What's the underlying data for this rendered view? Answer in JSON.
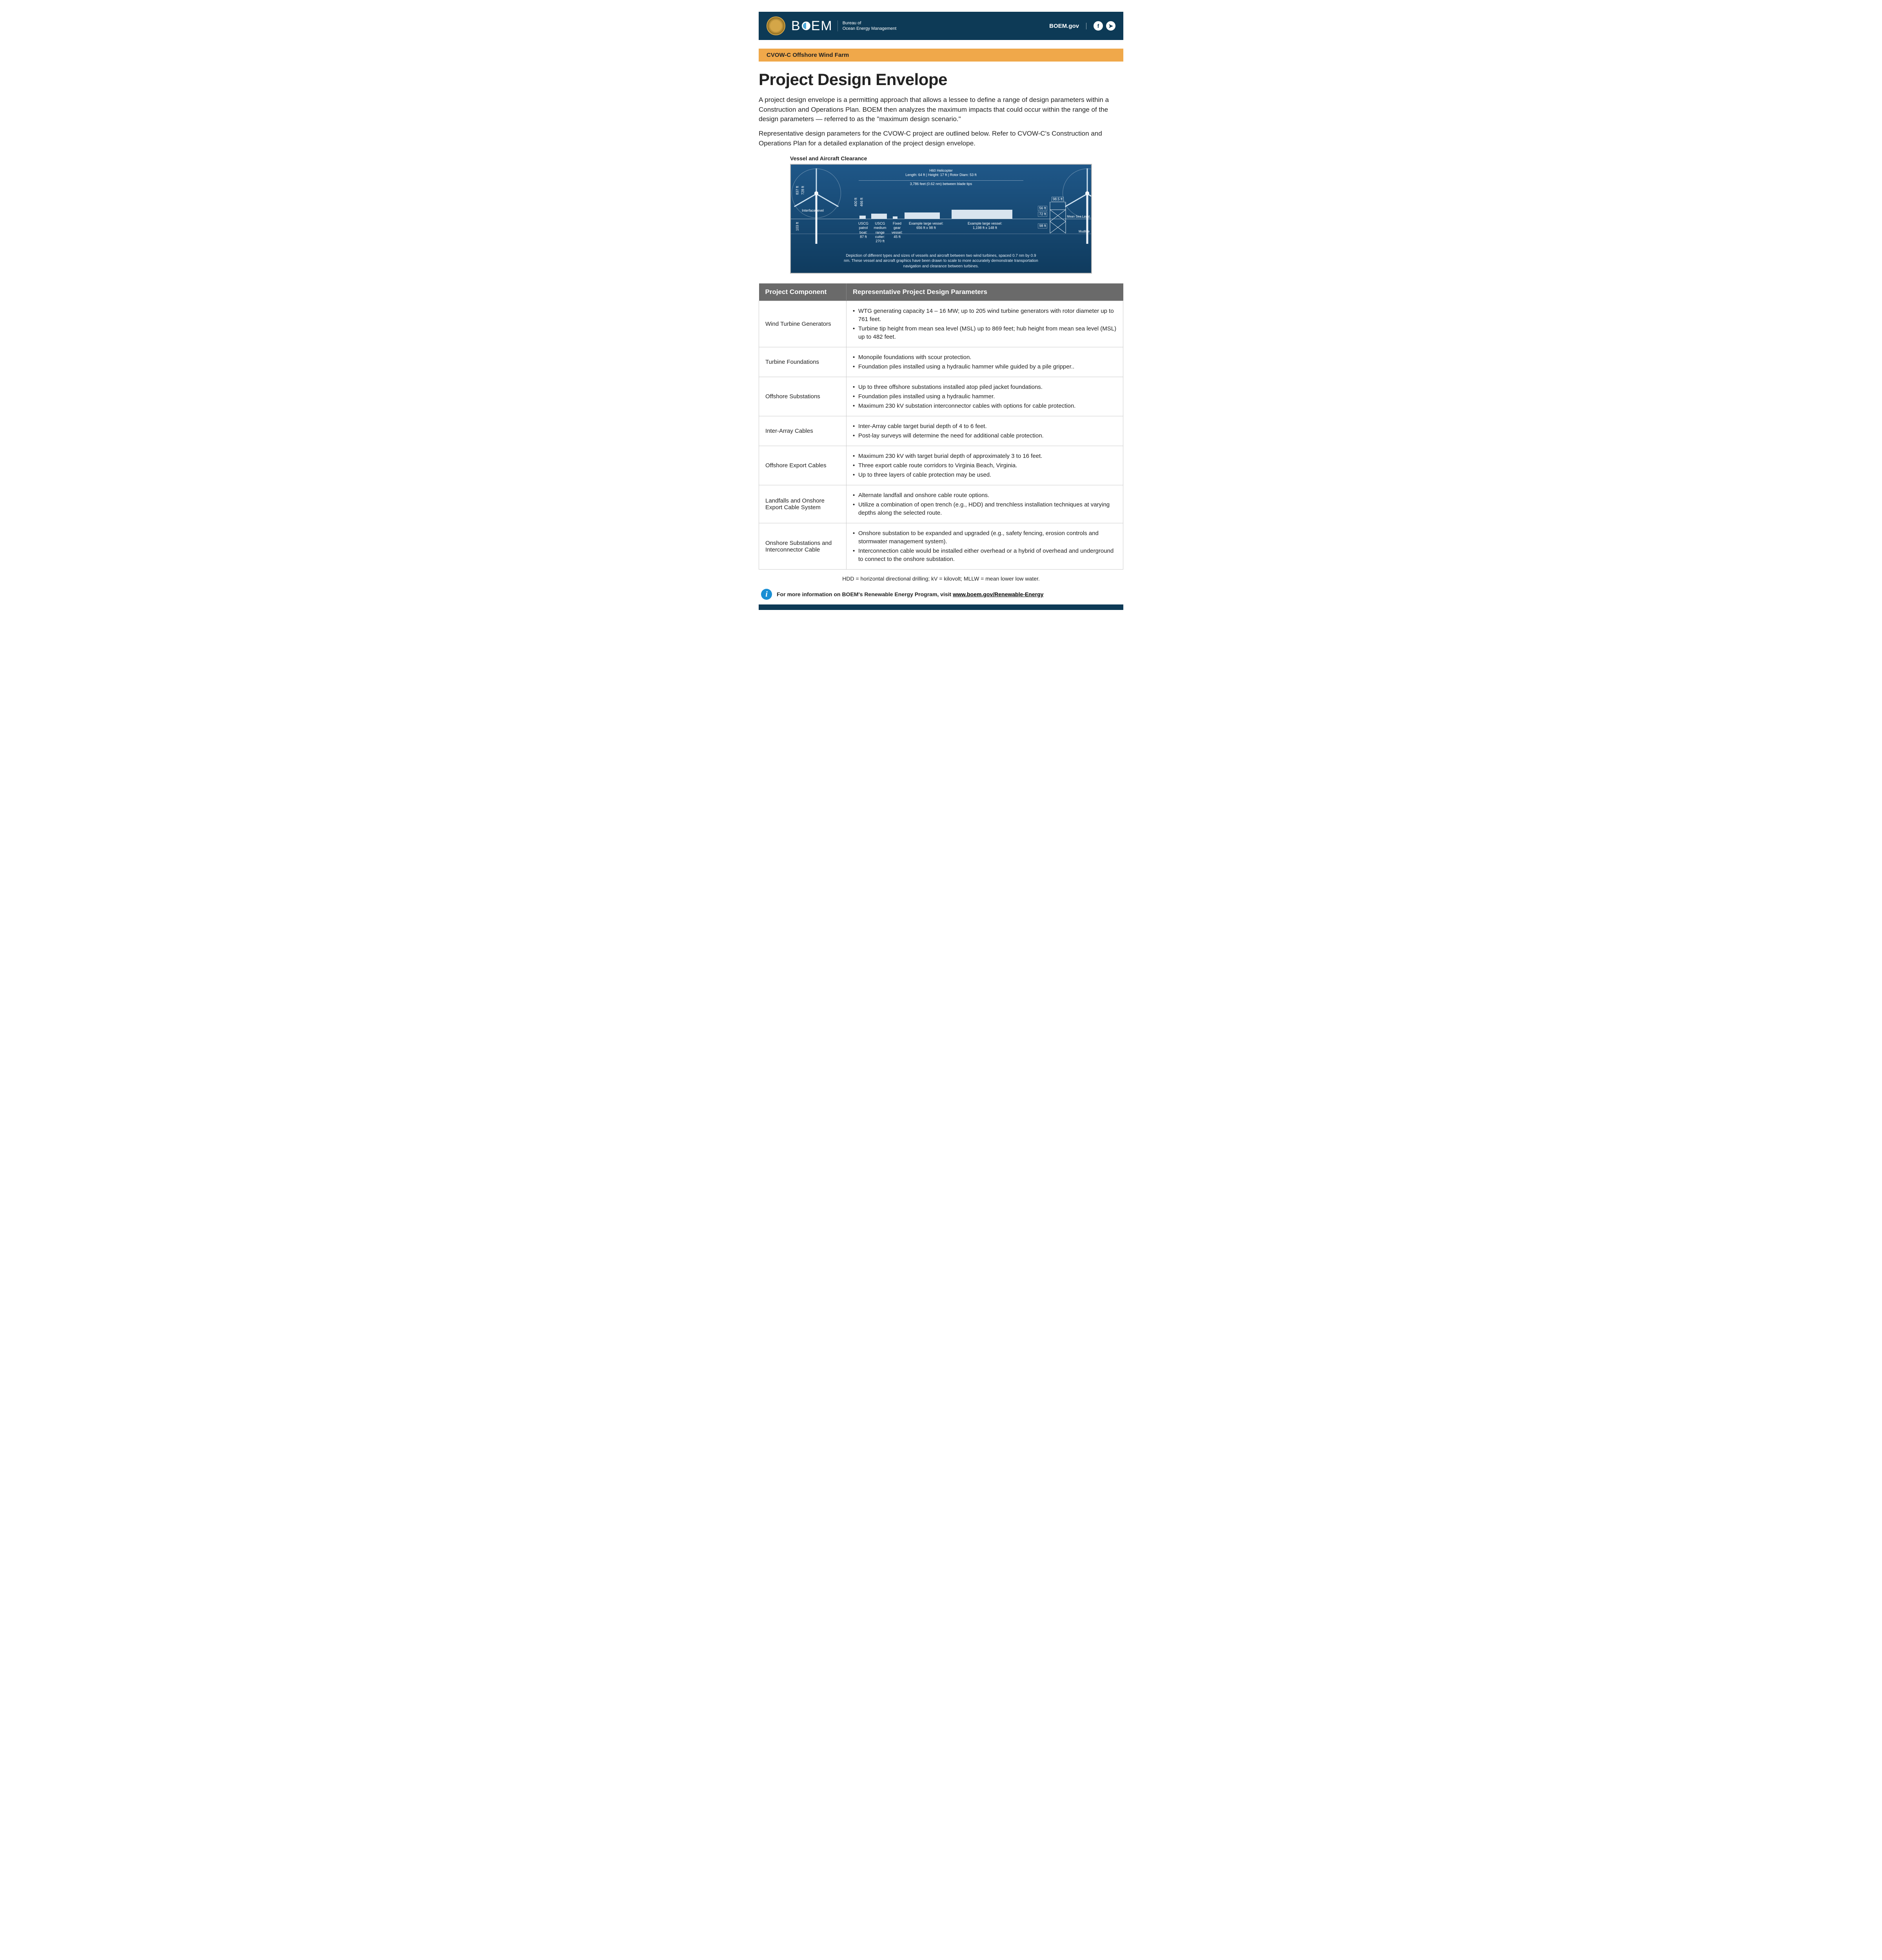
{
  "header": {
    "brand_letters": [
      "B",
      "E",
      "M"
    ],
    "bureau_line1": "Bureau of",
    "bureau_line2": "Ocean Energy Management",
    "site_link": "BOEM.gov",
    "social_fb": "f",
    "social_tw": "➤"
  },
  "subtitle_bar": "CVOW-C Offshore Wind Farm",
  "page_title": "Project Design Envelope",
  "intro": {
    "p1": "A project design envelope is a permitting approach that allows a lessee to define a range of design parameters within a Construction and Operations Plan. BOEM then analyzes the maximum impacts that could occur within the range of the design parameters — referred to as the \"maximum design scenario.\"",
    "p2": "Representative design parameters for the CVOW-C project are outlined below. Refer to CVOW-C's Construction and Operations Plan for a detailed explanation of the project design envelope."
  },
  "diagram": {
    "title": "Vessel and Aircraft Clearance",
    "helicopter_label": "H60 Helicopter",
    "helicopter_specs": "Length: 64 ft  |  Height: 17 ft  |  Rotor Diam: 53 ft",
    "between_tips": "3,786 feet (0.62 nm) between blade tips",
    "mean_sea_level": "Mean Sea Level",
    "mudline": "Mudline",
    "left_turbine_dims": [
      "837 ft",
      "728 ft"
    ],
    "left_turbine_draft": "103 ft",
    "interface_level": "Interface level",
    "mid_dims": [
      "400 ft",
      "466 ft"
    ],
    "sub_top": "98.5 ft",
    "sub_heights": [
      "56 ft",
      "72 ft",
      "98 ft"
    ],
    "vessels": [
      {
        "name": "USCG patrol boat:",
        "dim": "87 ft"
      },
      {
        "name": "USCG medium range cutter:",
        "dim": "270 ft"
      },
      {
        "name": "Fixed gear vessel:",
        "dim": "45 ft"
      },
      {
        "name": "Example large vessel:",
        "dim": "656 ft x 98 ft"
      },
      {
        "name": "Example large vessel:",
        "dim": "1,198 ft x 148 ft"
      }
    ],
    "caption": "Depiction of different types and sizes of vessels and aircraft between two wind turbines, spaced 0.7 nm by 0.9 nm. These vessel and aircraft graphics have been drawn to scale to more accurately demonstrate transportation navigation and clearance between turbines."
  },
  "table": {
    "col1_header": "Project Component",
    "col2_header": "Representative Project Design Parameters",
    "rows": [
      {
        "component": "Wind Turbine Generators",
        "bullets": [
          "WTG generating capacity 14 – 16 MW; up to 205 wind turbine generators with rotor diameter up to 761 feet.",
          "Turbine tip height from mean sea level (MSL) up to 869 feet; hub height from mean sea level (MSL) up to 482 feet."
        ]
      },
      {
        "component": "Turbine Foundations",
        "bullets": [
          "Monopile foundations with scour protection.",
          "Foundation piles installed using a hydraulic hammer while guided by a pile gripper.."
        ]
      },
      {
        "component": "Offshore Substations",
        "bullets": [
          "Up to three offshore substations installed atop piled jacket foundations.",
          "Foundation piles installed using a hydraulic hammer.",
          "Maximum 230 kV substation interconnector cables with options for cable protection."
        ]
      },
      {
        "component": "Inter-Array Cables",
        "bullets": [
          "Inter-Array cable target burial depth of 4 to 6 feet.",
          "Post-lay surveys will determine the need for additional cable protection."
        ]
      },
      {
        "component": "Offshore Export Cables",
        "bullets": [
          "Maximum 230 kV with target burial depth of approximately 3 to 16 feet.",
          "Three export cable route corridors to Virginia Beach, Virginia.",
          "Up to three layers of cable protection may be used."
        ]
      },
      {
        "component": "Landfalls and Onshore Export Cable System",
        "bullets": [
          "Alternate landfall and onshore cable route options.",
          "Utilize a combination of open trench (e.g., HDD) and trenchless installation techniques at varying depths along the selected route."
        ]
      },
      {
        "component": "Onshore Substations and Interconnector Cable",
        "bullets": [
          "Onshore substation to be expanded and upgraded (e.g., safety fencing, erosion controls and stormwater management system).",
          "Interconnection cable would be installed either overhead or a hybrid of overhead and underground to connect to the onshore substation."
        ]
      }
    ]
  },
  "legend_text": "HDD = horizontal directional drilling; kV = kilovolt; MLLW = mean lower low water.",
  "info_line_prefix": "For more information on BOEM's Renewable Energy Program, visit ",
  "info_link_text": "www.boem.gov/Renewable-Energy",
  "colors": {
    "header_bg": "#0d3a56",
    "orange": "#f0a84a",
    "table_header": "#6a6a6a",
    "diagram_bg_top": "#1f5788",
    "diagram_bg_bottom": "#0f3b5e",
    "info_icon_bg": "#1a8fd4"
  }
}
